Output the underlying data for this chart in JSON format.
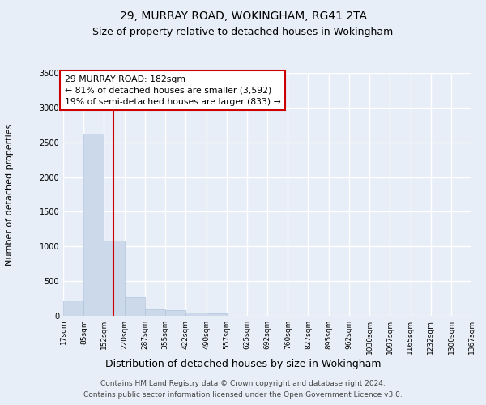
{
  "title1": "29, MURRAY ROAD, WOKINGHAM, RG41 2TA",
  "title2": "Size of property relative to detached houses in Wokingham",
  "xlabel": "Distribution of detached houses by size in Wokingham",
  "ylabel": "Number of detached properties",
  "bin_edges": [
    17,
    85,
    152,
    220,
    287,
    355,
    422,
    490,
    557,
    625,
    692,
    760,
    827,
    895,
    962,
    1030,
    1097,
    1165,
    1232,
    1300,
    1367
  ],
  "bar_heights": [
    220,
    2620,
    1080,
    270,
    90,
    80,
    50,
    30,
    5,
    3,
    2,
    2,
    1,
    1,
    1,
    0,
    0,
    0,
    0,
    0
  ],
  "bar_color": "#ccd9eb",
  "bar_edgecolor": "#b0c4de",
  "vline_x": 182,
  "vline_color": "#cc0000",
  "ylim": [
    0,
    3500
  ],
  "yticks": [
    0,
    500,
    1000,
    1500,
    2000,
    2500,
    3000,
    3500
  ],
  "annotation_title": "29 MURRAY ROAD: 182sqm",
  "annotation_line1": "← 81% of detached houses are smaller (3,592)",
  "annotation_line2": "19% of semi-detached houses are larger (833) →",
  "annotation_box_color": "#ffffff",
  "annotation_border_color": "#cc0000",
  "footer1": "Contains HM Land Registry data © Crown copyright and database right 2024.",
  "footer2": "Contains public sector information licensed under the Open Government Licence v3.0.",
  "background_color": "#e8eef7",
  "grid_color": "#ffffff",
  "title1_fontsize": 10,
  "title2_fontsize": 9,
  "ylabel_fontsize": 8,
  "xlabel_fontsize": 9
}
